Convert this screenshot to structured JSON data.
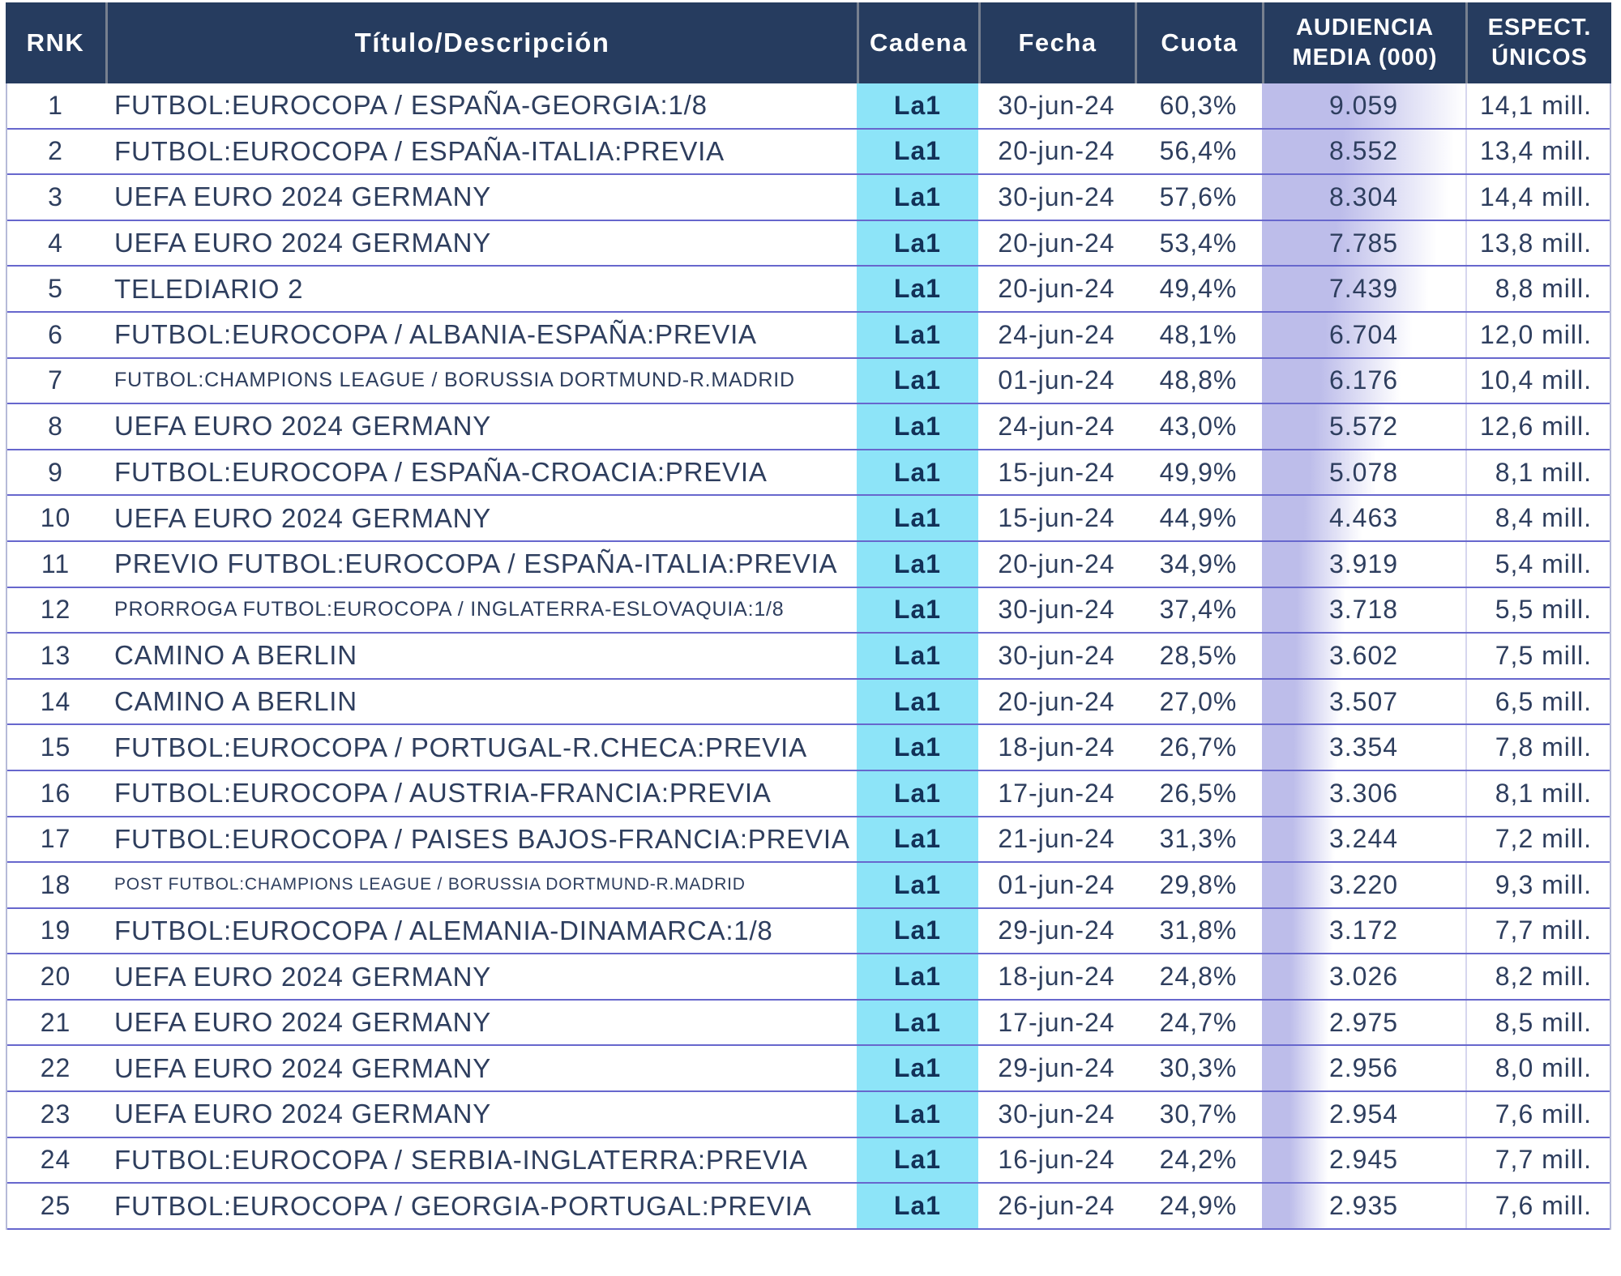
{
  "header": {
    "rnk": "RNK",
    "title": "Título/Descripción",
    "channel": "Cadena",
    "date": "Fecha",
    "share": "Cuota",
    "audience_line1": "AUDIENCIA",
    "audience_line2": "MEDIA (000)",
    "viewers_line1": "ESPECT.",
    "viewers_line2": "ÚNICOS"
  },
  "colors": {
    "header_bg": "#263c5f",
    "header_text": "#ffffff",
    "header_divider": "#77808f",
    "channel_bg": "#8de4f8",
    "channel_text": "#123158",
    "body_text": "#2e3e5e",
    "row_border": "#6767cd",
    "side_border": "#b6bad8",
    "bar_fill": "#bdbdea",
    "viewers_divider": "#d6d6ee"
  },
  "chart_data": {
    "type": "table",
    "columns": [
      "RNK",
      "Título/Descripción",
      "Cadena",
      "Fecha",
      "Cuota",
      "AUDIENCIA MEDIA (000)",
      "ESPECT. ÚNICOS"
    ],
    "bar_column": "AUDIENCIA MEDIA (000)",
    "bar_max": 9059,
    "rows": [
      {
        "rank": "1",
        "title": "FUTBOL:EUROCOPA / ESPAÑA-GEORGIA:1/8",
        "channel": "La1",
        "date": "30-jun-24",
        "share": "60,3%",
        "audience": "9.059",
        "viewers": "14,1 mill."
      },
      {
        "rank": "2",
        "title": "FUTBOL:EUROCOPA / ESPAÑA-ITALIA:PREVIA",
        "channel": "La1",
        "date": "20-jun-24",
        "share": "56,4%",
        "audience": "8.552",
        "viewers": "13,4 mill."
      },
      {
        "rank": "3",
        "title": "UEFA EURO 2024 GERMANY",
        "channel": "La1",
        "date": "30-jun-24",
        "share": "57,6%",
        "audience": "8.304",
        "viewers": "14,4 mill."
      },
      {
        "rank": "4",
        "title": "UEFA EURO 2024 GERMANY",
        "channel": "La1",
        "date": "20-jun-24",
        "share": "53,4%",
        "audience": "7.785",
        "viewers": "13,8 mill."
      },
      {
        "rank": "5",
        "title": "TELEDIARIO 2",
        "channel": "La1",
        "date": "20-jun-24",
        "share": "49,4%",
        "audience": "7.439",
        "viewers": "8,8 mill."
      },
      {
        "rank": "6",
        "title": "FUTBOL:EUROCOPA / ALBANIA-ESPAÑA:PREVIA",
        "channel": "La1",
        "date": "24-jun-24",
        "share": "48,1%",
        "audience": "6.704",
        "viewers": "12,0 mill."
      },
      {
        "rank": "7",
        "title": "FUTBOL:CHAMPIONS LEAGUE / BORUSSIA DORTMUND-R.MADRID",
        "channel": "La1",
        "date": "01-jun-24",
        "share": "48,8%",
        "audience": "6.176",
        "viewers": "10,4 mill."
      },
      {
        "rank": "8",
        "title": "UEFA EURO 2024 GERMANY",
        "channel": "La1",
        "date": "24-jun-24",
        "share": "43,0%",
        "audience": "5.572",
        "viewers": "12,6 mill."
      },
      {
        "rank": "9",
        "title": "FUTBOL:EUROCOPA / ESPAÑA-CROACIA:PREVIA",
        "channel": "La1",
        "date": "15-jun-24",
        "share": "49,9%",
        "audience": "5.078",
        "viewers": "8,1 mill."
      },
      {
        "rank": "10",
        "title": "UEFA EURO 2024 GERMANY",
        "channel": "La1",
        "date": "15-jun-24",
        "share": "44,9%",
        "audience": "4.463",
        "viewers": "8,4 mill."
      },
      {
        "rank": "11",
        "title": "PREVIO FUTBOL:EUROCOPA / ESPAÑA-ITALIA:PREVIA",
        "channel": "La1",
        "date": "20-jun-24",
        "share": "34,9%",
        "audience": "3.919",
        "viewers": "5,4 mill."
      },
      {
        "rank": "12",
        "title": "PRORROGA FUTBOL:EUROCOPA / INGLATERRA-ESLOVAQUIA:1/8",
        "channel": "La1",
        "date": "30-jun-24",
        "share": "37,4%",
        "audience": "3.718",
        "viewers": "5,5 mill."
      },
      {
        "rank": "13",
        "title": "CAMINO A BERLIN",
        "channel": "La1",
        "date": "30-jun-24",
        "share": "28,5%",
        "audience": "3.602",
        "viewers": "7,5 mill."
      },
      {
        "rank": "14",
        "title": "CAMINO A BERLIN",
        "channel": "La1",
        "date": "20-jun-24",
        "share": "27,0%",
        "audience": "3.507",
        "viewers": "6,5 mill."
      },
      {
        "rank": "15",
        "title": "FUTBOL:EUROCOPA / PORTUGAL-R.CHECA:PREVIA",
        "channel": "La1",
        "date": "18-jun-24",
        "share": "26,7%",
        "audience": "3.354",
        "viewers": "7,8 mill."
      },
      {
        "rank": "16",
        "title": "FUTBOL:EUROCOPA / AUSTRIA-FRANCIA:PREVIA",
        "channel": "La1",
        "date": "17-jun-24",
        "share": "26,5%",
        "audience": "3.306",
        "viewers": "8,1 mill."
      },
      {
        "rank": "17",
        "title": "FUTBOL:EUROCOPA / PAISES BAJOS-FRANCIA:PREVIA",
        "channel": "La1",
        "date": "21-jun-24",
        "share": "31,3%",
        "audience": "3.244",
        "viewers": "7,2 mill."
      },
      {
        "rank": "18",
        "title": "POST FUTBOL:CHAMPIONS LEAGUE / BORUSSIA DORTMUND-R.MADRID",
        "channel": "La1",
        "date": "01-jun-24",
        "share": "29,8%",
        "audience": "3.220",
        "viewers": "9,3 mill."
      },
      {
        "rank": "19",
        "title": "FUTBOL:EUROCOPA / ALEMANIA-DINAMARCA:1/8",
        "channel": "La1",
        "date": "29-jun-24",
        "share": "31,8%",
        "audience": "3.172",
        "viewers": "7,7 mill."
      },
      {
        "rank": "20",
        "title": "UEFA EURO 2024 GERMANY",
        "channel": "La1",
        "date": "18-jun-24",
        "share": "24,8%",
        "audience": "3.026",
        "viewers": "8,2 mill."
      },
      {
        "rank": "21",
        "title": "UEFA EURO 2024 GERMANY",
        "channel": "La1",
        "date": "17-jun-24",
        "share": "24,7%",
        "audience": "2.975",
        "viewers": "8,5 mill."
      },
      {
        "rank": "22",
        "title": "UEFA EURO 2024 GERMANY",
        "channel": "La1",
        "date": "29-jun-24",
        "share": "30,3%",
        "audience": "2.956",
        "viewers": "8,0 mill."
      },
      {
        "rank": "23",
        "title": "UEFA EURO 2024 GERMANY",
        "channel": "La1",
        "date": "30-jun-24",
        "share": "30,7%",
        "audience": "2.954",
        "viewers": "7,6 mill."
      },
      {
        "rank": "24",
        "title": "FUTBOL:EUROCOPA / SERBIA-INGLATERRA:PREVIA",
        "channel": "La1",
        "date": "16-jun-24",
        "share": "24,2%",
        "audience": "2.945",
        "viewers": "7,7 mill."
      },
      {
        "rank": "25",
        "title": "FUTBOL:EUROCOPA / GEORGIA-PORTUGAL:PREVIA",
        "channel": "La1",
        "date": "26-jun-24",
        "share": "24,9%",
        "audience": "2.935",
        "viewers": "7,6 mill."
      }
    ]
  }
}
